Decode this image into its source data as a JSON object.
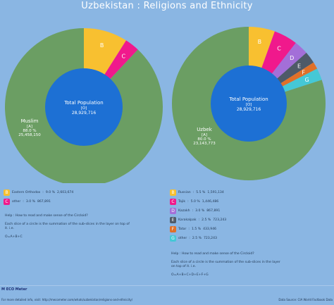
{
  "title": "Uzbekistan : Religions and Ethnicity",
  "chart_data": [
    {
      "type": "pie",
      "name_key": "religions",
      "center": {
        "label": "Total Population",
        "sub": "[O]",
        "value": "28,929,716"
      },
      "slices": [
        {
          "id": "A",
          "name": "Muslim",
          "percent": 88.0,
          "value": "25,458,150",
          "color": "#6b9e63",
          "text": "#ffffff"
        },
        {
          "id": "B",
          "name": "Eastern Orthodox",
          "percent": 9.0,
          "value": "2,603,674",
          "color": "#f8c030",
          "text": "#ffffff"
        },
        {
          "id": "C",
          "name": "other",
          "percent": 3.0,
          "value": "867,891",
          "color": "#f0198c",
          "text": "#ffffff"
        }
      ],
      "legend": [
        {
          "id": "B",
          "name": "Eastern Orthodox",
          "percent": "9.0 %",
          "value": "2,603,674"
        },
        {
          "id": "C",
          "name": "other",
          "percent": "3.0 %",
          "value": "867,891"
        }
      ],
      "help": [
        "Help : How to read and make sense of the Circloid?",
        "Each slice of a circle is the summation of the sub-slices in the layer on top of it. i.e.",
        "O=A+B+C"
      ]
    },
    {
      "type": "pie",
      "name_key": "ethnicity",
      "center": {
        "label": "Total Population",
        "sub": "[O]",
        "value": "28,929,716"
      },
      "slices": [
        {
          "id": "A",
          "name": "Uzbek",
          "percent": 80.0,
          "value": "23,143,773",
          "color": "#6b9e63",
          "text": "#ffffff"
        },
        {
          "id": "B",
          "name": "Russian",
          "percent": 5.5,
          "value": "1,591,134",
          "color": "#f8c030",
          "text": "#ffffff"
        },
        {
          "id": "C",
          "name": "Tajik",
          "percent": 5.0,
          "value": "1,446,486",
          "color": "#f0198c",
          "text": "#ffffff"
        },
        {
          "id": "D",
          "name": "Kazakh",
          "percent": 3.0,
          "value": "867,891",
          "color": "#a36fd8",
          "text": "#ffffff"
        },
        {
          "id": "E",
          "name": "Karakalpak",
          "percent": 2.5,
          "value": "723,243",
          "color": "#4e5a68",
          "text": "#ffffff"
        },
        {
          "id": "F",
          "name": "Tatar",
          "percent": 1.5,
          "value": "433,946",
          "color": "#e07028",
          "text": "#ffffff"
        },
        {
          "id": "G",
          "name": "other",
          "percent": 2.5,
          "value": "723,243",
          "color": "#45c8d6",
          "text": "#ffffff"
        }
      ],
      "legend": [
        {
          "id": "B",
          "name": "Russian",
          "percent": "5.5 %",
          "value": "1,591,134"
        },
        {
          "id": "C",
          "name": "Tajik",
          "percent": "5.0 %",
          "value": "1,446,486"
        },
        {
          "id": "D",
          "name": "Kazakh",
          "percent": "3.0 %",
          "value": "867,891"
        },
        {
          "id": "E",
          "name": "Karakalpak",
          "percent": "2.5 %",
          "value": "723,243"
        },
        {
          "id": "F",
          "name": "Tatar",
          "percent": "1.5 %",
          "value": "433,946"
        },
        {
          "id": "G",
          "name": "other",
          "percent": "2.5 %",
          "value": "723,243"
        }
      ],
      "help": [
        "Help : How to read and make sense of the Circloid?",
        "Each slice of a circle is the summation of the sub-slices in the layer on top of it. i.e.",
        "O=A+B+C+D+E+F+G"
      ]
    }
  ],
  "footer": {
    "logo": "ECO Meter",
    "logo_letter": "M",
    "url": "For more detailed info, visit: http://mecometer.com/whats/uzbekistan/religions-and-ethnicity/",
    "source": "Data Source: CIA World Factbook Data"
  },
  "colors": {
    "background": "#8ab6e3",
    "center_disc": "#1d70d4",
    "divider": "#a9c8ea"
  }
}
